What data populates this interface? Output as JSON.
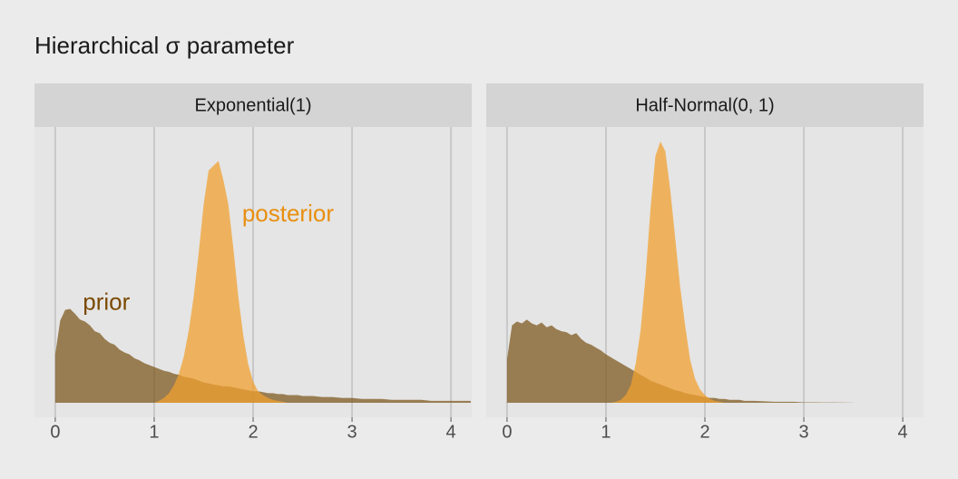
{
  "title": "Hierarchical σ parameter",
  "chart_data": [
    {
      "type": "area",
      "title": "Exponential(1)",
      "x": [
        0,
        0.05,
        0.1,
        0.15,
        0.2,
        0.25,
        0.3,
        0.35,
        0.4,
        0.45,
        0.5,
        0.55,
        0.6,
        0.65,
        0.7,
        0.75,
        0.8,
        0.85,
        0.9,
        0.95,
        1.0,
        1.05,
        1.1,
        1.15,
        1.2,
        1.25,
        1.3,
        1.35,
        1.4,
        1.45,
        1.5,
        1.55,
        1.6,
        1.65,
        1.7,
        1.75,
        1.8,
        1.85,
        1.9,
        1.95,
        2.0,
        2.05,
        2.1,
        2.15,
        2.2,
        2.25,
        2.3,
        2.35,
        2.4,
        2.45,
        2.5,
        2.6,
        2.7,
        2.8,
        2.9,
        3.0,
        3.1,
        3.2,
        3.3,
        3.4,
        3.5,
        3.6,
        3.7,
        3.8,
        3.9,
        4.0,
        4.1,
        4.2
      ],
      "series": [
        {
          "name": "prior",
          "color": "#7f5a20",
          "values": [
            0.5,
            0.85,
            0.96,
            0.97,
            0.92,
            0.86,
            0.84,
            0.8,
            0.74,
            0.72,
            0.66,
            0.62,
            0.6,
            0.55,
            0.52,
            0.5,
            0.46,
            0.44,
            0.41,
            0.39,
            0.37,
            0.35,
            0.33,
            0.32,
            0.3,
            0.29,
            0.27,
            0.26,
            0.25,
            0.23,
            0.21,
            0.2,
            0.19,
            0.18,
            0.17,
            0.17,
            0.16,
            0.15,
            0.14,
            0.13,
            0.12,
            0.12,
            0.11,
            0.1,
            0.1,
            0.09,
            0.09,
            0.08,
            0.08,
            0.08,
            0.07,
            0.07,
            0.06,
            0.06,
            0.05,
            0.05,
            0.04,
            0.04,
            0.04,
            0.03,
            0.03,
            0.03,
            0.03,
            0.02,
            0.02,
            0.02,
            0.02,
            0.02
          ]
        },
        {
          "name": "posterior",
          "color": "#f0a030",
          "values": [
            0,
            0,
            0,
            0,
            0,
            0,
            0,
            0,
            0,
            0,
            0,
            0,
            0,
            0,
            0,
            0,
            0,
            0,
            0,
            0,
            0,
            0.02,
            0.05,
            0.1,
            0.18,
            0.3,
            0.48,
            0.75,
            1.1,
            1.55,
            2.05,
            2.4,
            2.45,
            2.5,
            2.3,
            2.05,
            1.6,
            1.1,
            0.7,
            0.4,
            0.22,
            0.12,
            0.08,
            0.05,
            0.03,
            0.02,
            0.01,
            0,
            0,
            0,
            0,
            0,
            0,
            0,
            0,
            0,
            0,
            0,
            0,
            0,
            0,
            0,
            0,
            0,
            0,
            0,
            0,
            0
          ]
        }
      ],
      "xlim": [
        -0.21,
        4.21
      ],
      "xticks": [
        0,
        1,
        2,
        3,
        4
      ],
      "ylim": [
        -0.15,
        2.85
      ],
      "grid": true
    },
    {
      "type": "area",
      "title": "Half-Normal(0, 1)",
      "x": [
        0,
        0.05,
        0.1,
        0.15,
        0.2,
        0.25,
        0.3,
        0.35,
        0.4,
        0.45,
        0.5,
        0.55,
        0.6,
        0.65,
        0.7,
        0.75,
        0.8,
        0.85,
        0.9,
        0.95,
        1.0,
        1.05,
        1.1,
        1.15,
        1.2,
        1.25,
        1.3,
        1.35,
        1.4,
        1.45,
        1.5,
        1.55,
        1.6,
        1.65,
        1.7,
        1.75,
        1.8,
        1.85,
        1.9,
        1.95,
        2.0,
        2.05,
        2.1,
        2.15,
        2.2,
        2.25,
        2.3,
        2.35,
        2.4,
        2.45,
        2.5,
        2.6,
        2.7,
        2.8,
        2.9,
        3.0,
        3.1,
        3.2,
        3.3,
        3.4,
        3.5,
        3.6,
        3.7,
        3.8,
        3.9,
        4.0,
        4.1,
        4.2
      ],
      "series": [
        {
          "color": "#7f5a20",
          "values": [
            0.45,
            0.8,
            0.84,
            0.82,
            0.86,
            0.82,
            0.8,
            0.83,
            0.78,
            0.8,
            0.76,
            0.74,
            0.73,
            0.7,
            0.72,
            0.66,
            0.62,
            0.6,
            0.57,
            0.54,
            0.5,
            0.47,
            0.44,
            0.41,
            0.38,
            0.35,
            0.32,
            0.29,
            0.26,
            0.23,
            0.21,
            0.19,
            0.17,
            0.15,
            0.13,
            0.12,
            0.1,
            0.09,
            0.08,
            0.07,
            0.06,
            0.05,
            0.05,
            0.04,
            0.04,
            0.03,
            0.03,
            0.03,
            0.02,
            0.02,
            0.02,
            0.015,
            0.01,
            0.01,
            0.01,
            0.005,
            0.005,
            0.004,
            0.003,
            0.002,
            0.001,
            null,
            null,
            null,
            null,
            null,
            null,
            null
          ]
        },
        {
          "color": "#f0a030",
          "values": [
            0,
            0,
            0,
            0,
            0,
            0,
            0,
            0,
            0,
            0,
            0,
            0,
            0,
            0,
            0,
            0,
            0,
            0,
            0,
            0,
            0,
            0,
            0.01,
            0.03,
            0.08,
            0.18,
            0.4,
            0.75,
            1.3,
            2.0,
            2.55,
            2.7,
            2.6,
            2.2,
            1.7,
            1.2,
            0.8,
            0.45,
            0.25,
            0.14,
            0.08,
            0.04,
            0.02,
            0.01,
            0,
            0,
            0,
            0,
            0,
            0,
            0,
            0,
            0,
            0,
            0,
            0,
            0,
            0,
            0,
            0,
            0,
            0,
            0,
            0,
            0,
            0,
            0,
            0
          ]
        }
      ],
      "xlim": [
        -0.21,
        4.21
      ],
      "xticks": [
        0,
        1,
        2,
        3,
        4
      ],
      "ylim": [
        -0.15,
        2.85
      ],
      "grid": true
    }
  ]
}
